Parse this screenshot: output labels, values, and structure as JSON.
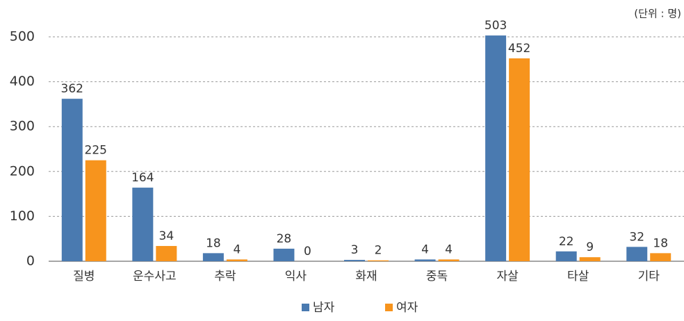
{
  "chart_data": {
    "type": "bar",
    "unit_note": "(단위 : 명)",
    "categories": [
      "질병",
      "운수사고",
      "추락",
      "익사",
      "화재",
      "중독",
      "자살",
      "타살",
      "기타"
    ],
    "series": [
      {
        "name": "남자",
        "color": "#4a7ab0",
        "values": [
          362,
          164,
          18,
          28,
          3,
          4,
          503,
          22,
          32
        ]
      },
      {
        "name": "여자",
        "color": "#f7941d",
        "values": [
          225,
          34,
          4,
          0,
          2,
          4,
          452,
          9,
          18
        ]
      }
    ],
    "ylim": [
      0,
      500
    ],
    "yticks": [
      0,
      100,
      200,
      300,
      400,
      500
    ],
    "grid": true,
    "legend": "bottom"
  }
}
